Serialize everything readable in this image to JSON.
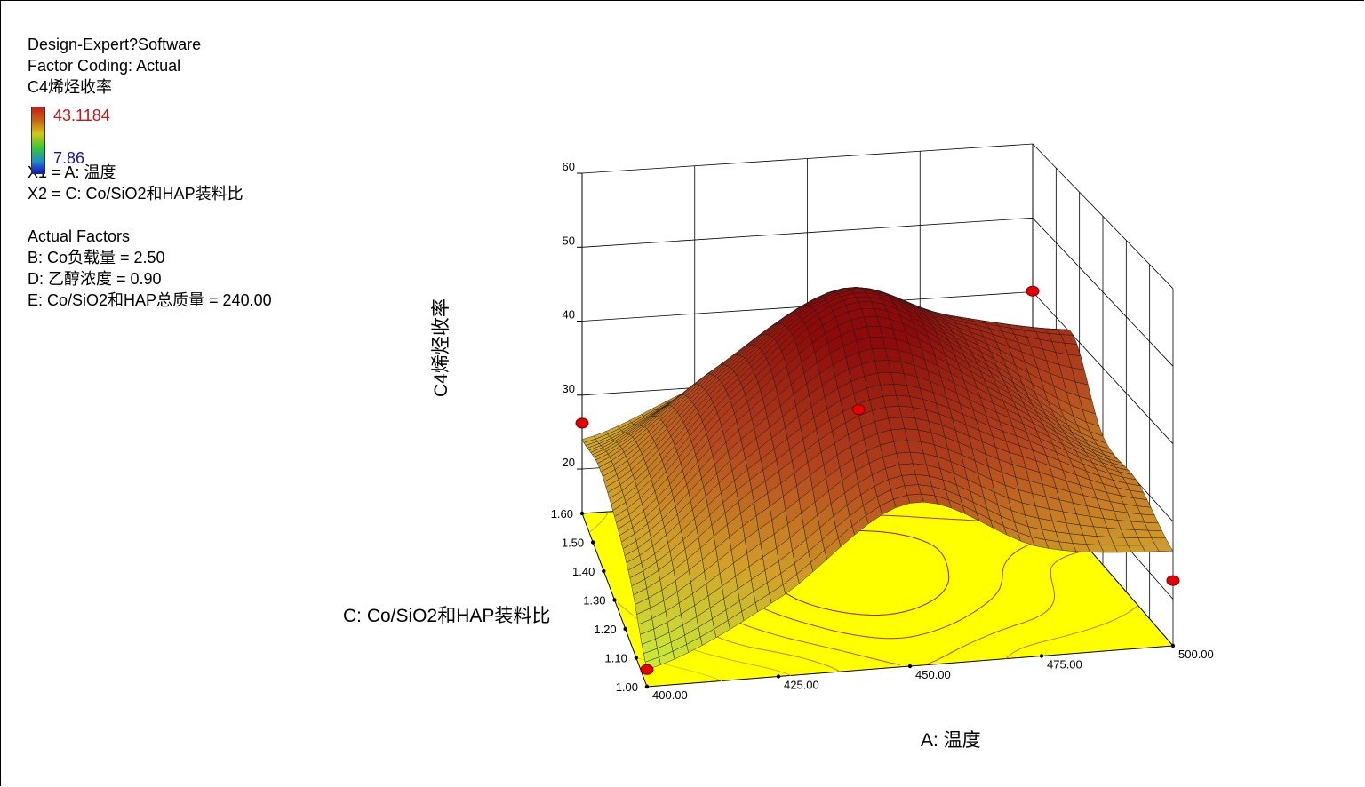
{
  "info": {
    "software": "Design-Expert?Software",
    "coding": "Factor Coding: Actual",
    "response": "C4烯烃收率",
    "legend_max": "43.1184",
    "legend_min": "7.86",
    "x1": "X1 = A: 温度",
    "x2": "X2 = C: Co/SiO2和HAP装料比",
    "actual_factors_title": "Actual Factors",
    "factor_b": "B: Co负载量 = 2.50",
    "factor_d": "D: 乙醇浓度 = 0.90",
    "factor_e": "E: Co/SiO2和HAP总质量 = 240.00"
  },
  "colors": {
    "surface_low": "#c8ff32",
    "surface_high": "#8c0a0a",
    "floor": "#ffff00",
    "design_point": "#e60000"
  },
  "chart_data": {
    "type": "surface",
    "title": "",
    "xlabel": "A: 温度",
    "ylabel": "C: Co/SiO2和HAP装料比",
    "zlabel": "C4烯烃收率",
    "x_ticks": [
      "400.00",
      "425.00",
      "450.00",
      "475.00",
      "500.00"
    ],
    "y_ticks": [
      "1.00",
      "1.10",
      "1.20",
      "1.30",
      "1.40",
      "1.50",
      "1.60"
    ],
    "z_ticks": [
      "20",
      "30",
      "40",
      "50",
      "60"
    ],
    "xlim": [
      400,
      500
    ],
    "ylim": [
      1.0,
      1.6
    ],
    "zlim": [
      14,
      60
    ],
    "surface": {
      "x": [
        400,
        425,
        450,
        475,
        500
      ],
      "y": [
        1.0,
        1.15,
        1.3,
        1.45,
        1.6
      ],
      "z": [
        [
          16.2,
          24,
          35,
          28,
          26.2
        ],
        [
          22,
          34,
          43,
          37,
          30
        ],
        [
          25,
          40,
          51,
          42,
          31
        ],
        [
          26.2,
          38,
          47,
          43,
          40.1
        ],
        [
          24,
          30,
          35,
          33,
          22.4
        ]
      ]
    },
    "design_points": [
      {
        "x": 400,
        "y": 1.0,
        "z": 16.2
      },
      {
        "x": 400,
        "y": 1.6,
        "z": 26.2
      },
      {
        "x": 450,
        "y": 1.3,
        "z": 36.8
      },
      {
        "x": 500,
        "y": 1.6,
        "z": 40.1
      },
      {
        "x": 500,
        "y": 1.0,
        "z": 22.4
      }
    ],
    "grid": true
  }
}
